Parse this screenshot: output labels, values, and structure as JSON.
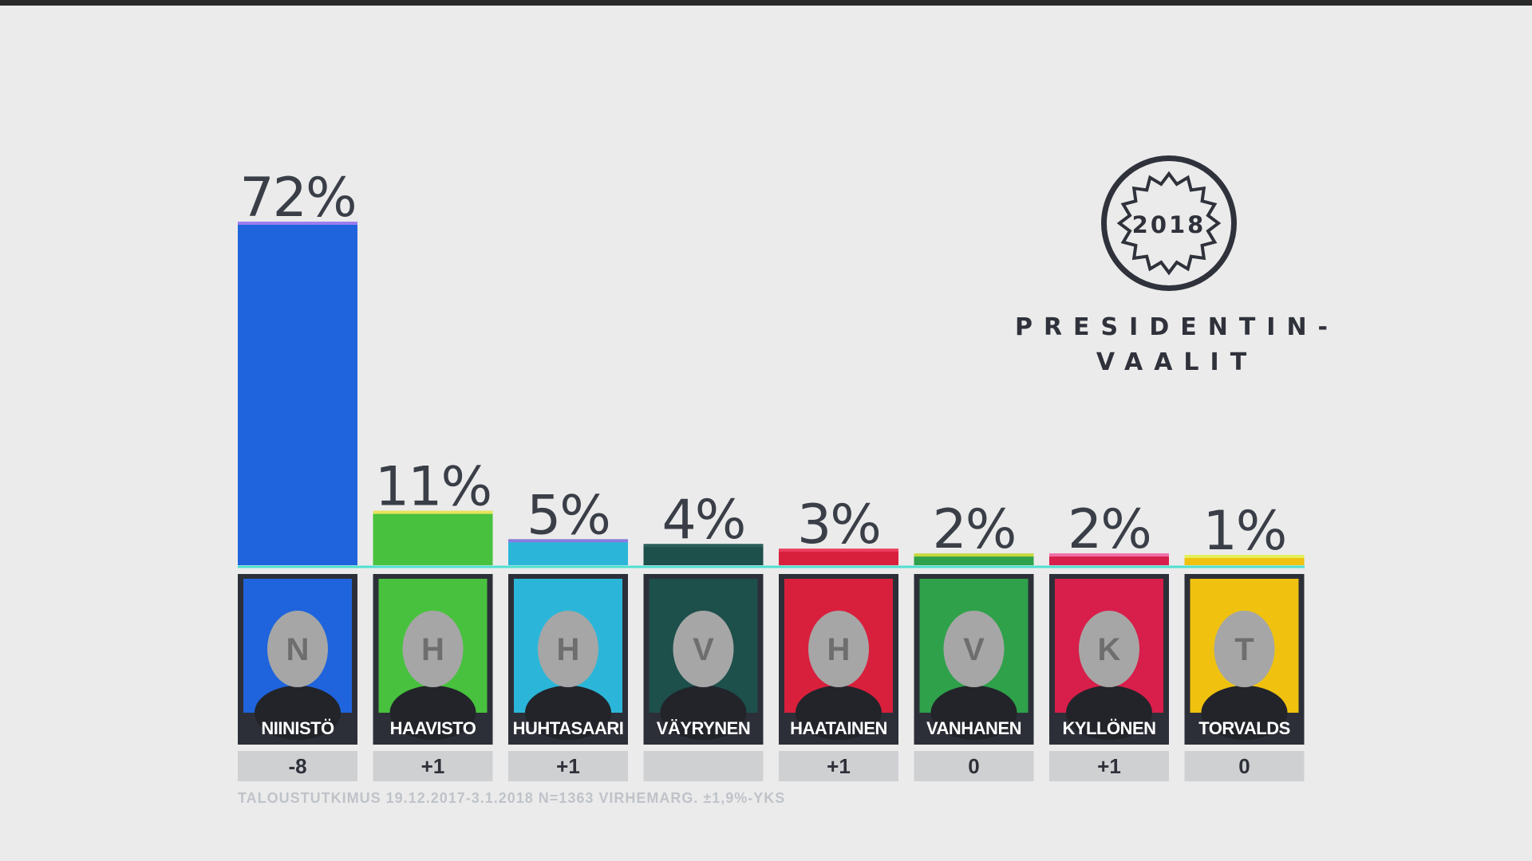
{
  "logo": {
    "year": "2018",
    "line1": "PRESIDENTIN-",
    "line2": "VAALIT"
  },
  "footnote": "TALOUSTUTKIMUS 19.12.2017-3.1.2018 N=1363 VIRHEMARG. ±1,9%-YKS",
  "chart_data": {
    "type": "bar",
    "categories": [
      "NIINISTÖ",
      "HAAVISTO",
      "HUHTASAARI",
      "VÄYRYNEN",
      "HAATAINEN",
      "VANHANEN",
      "KYLLÖNEN",
      "TORVALDS"
    ],
    "values": [
      72,
      11,
      5,
      4,
      3,
      2,
      2,
      1
    ],
    "labels": [
      "72%",
      "11%",
      "5%",
      "4%",
      "3%",
      "2%",
      "2%",
      "1%"
    ],
    "changes": [
      "-8",
      "+1",
      "+1",
      "",
      "+1",
      "0",
      "+1",
      "0"
    ],
    "colors": [
      "#1f64dd",
      "#48c13e",
      "#2bb6d9",
      "#1d4f4b",
      "#d8203d",
      "#2fa14a",
      "#d81e4a",
      "#f0c20f"
    ],
    "accent_colors": [
      "#9b7ef0",
      "#e7e35a",
      "#8a7be0",
      "#2c5f5b",
      "#ea3d5d",
      "#c7d840",
      "#f06fa6",
      "#e4f05a"
    ],
    "ylim": [
      0,
      72
    ]
  }
}
